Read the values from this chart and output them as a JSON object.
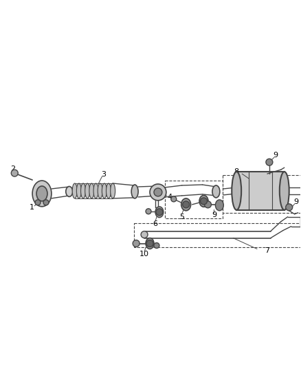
{
  "bg_color": "#ffffff",
  "line_color": "#444444",
  "label_color": "#000000",
  "fig_width": 4.38,
  "fig_height": 5.33,
  "dpi": 100
}
